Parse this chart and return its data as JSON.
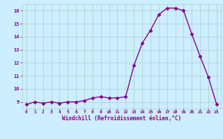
{
  "hours": [
    0,
    1,
    2,
    3,
    4,
    5,
    6,
    7,
    8,
    9,
    10,
    11,
    12,
    13,
    14,
    15,
    16,
    17,
    18,
    19,
    20,
    21,
    22,
    23
  ],
  "values": [
    8.8,
    9.0,
    8.9,
    9.0,
    8.9,
    9.0,
    9.0,
    9.1,
    9.3,
    9.4,
    9.3,
    9.3,
    9.4,
    11.8,
    13.5,
    14.5,
    15.7,
    16.2,
    16.2,
    16.0,
    14.2,
    12.5,
    10.9,
    8.8
  ],
  "xlabel": "Windchill (Refroidissement éolien,°C)",
  "ylim": [
    8.5,
    16.5
  ],
  "xlim": [
    -0.5,
    23.5
  ],
  "yticks": [
    9,
    10,
    11,
    12,
    13,
    14,
    15,
    16
  ],
  "xticks": [
    0,
    1,
    2,
    3,
    4,
    5,
    6,
    7,
    8,
    9,
    10,
    11,
    12,
    13,
    14,
    15,
    16,
    17,
    18,
    19,
    20,
    21,
    22,
    23
  ],
  "line_color": "#880088",
  "marker": "D",
  "marker_size": 2.5,
  "bg_color": "#cceeff",
  "grid_color": "#aacccc",
  "tick_label_color": "#880088",
  "xlabel_color": "#880088",
  "line_width": 1.0
}
